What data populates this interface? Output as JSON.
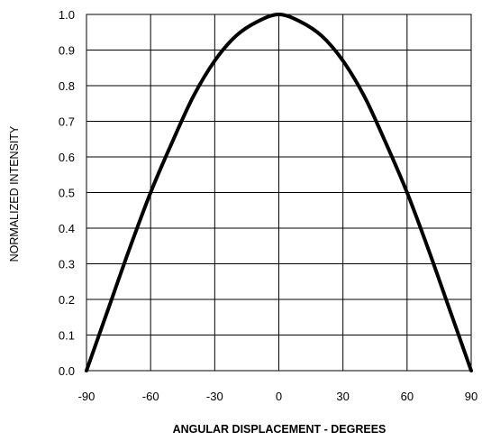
{
  "chart_data": {
    "type": "line",
    "title": "",
    "xlabel": "ANGULAR DISPLACEMENT - DEGREES",
    "ylabel": "NORMALIZED INTENSITY",
    "xlim": [
      -90,
      90
    ],
    "ylim": [
      0,
      1
    ],
    "x_ticks": [
      "-90",
      "-60",
      "-30",
      "0",
      "30",
      "60",
      "90"
    ],
    "y_ticks": [
      "0.0",
      "0.1",
      "0.2",
      "0.3",
      "0.4",
      "0.5",
      "0.6",
      "0.7",
      "0.8",
      "0.9",
      "1.0"
    ],
    "grid": true,
    "legend": "none",
    "line_color": "#000000",
    "series": [
      {
        "x": [
          -90,
          -80,
          -70,
          -60,
          -50,
          -40,
          -30,
          -20,
          -10,
          0,
          10,
          20,
          30,
          40,
          50,
          60,
          70,
          80,
          90
        ],
        "values": [
          0.0,
          0.17,
          0.34,
          0.5,
          0.64,
          0.77,
          0.87,
          0.94,
          0.98,
          1.0,
          0.98,
          0.94,
          0.87,
          0.77,
          0.64,
          0.5,
          0.34,
          0.17,
          0.0
        ]
      }
    ]
  }
}
